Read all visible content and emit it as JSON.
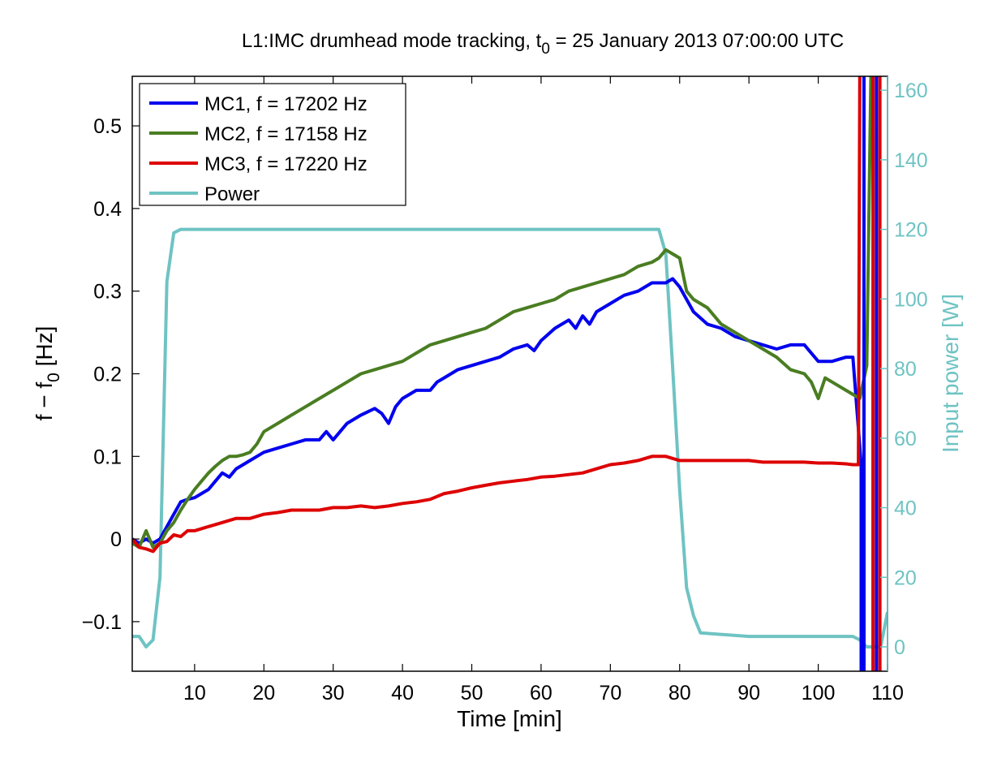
{
  "chart_data": {
    "type": "line",
    "title": {
      "main": "L1:IMC drumhead mode tracking, t",
      "sub": "0",
      "rest": " = 25 January 2013 07:00:00 UTC"
    },
    "xlabel": "Time [min]",
    "ylabel": {
      "pre": "f − f",
      "sub": "0",
      "post": " [Hz]"
    },
    "ylabel_right": "Input power [W]",
    "xlim": [
      1,
      110
    ],
    "ylim": [
      -0.16,
      0.56
    ],
    "ylim_right": [
      -7,
      164
    ],
    "xticks": [
      10,
      20,
      30,
      40,
      50,
      60,
      70,
      80,
      90,
      100,
      110
    ],
    "yticks": [
      -0.1,
      0,
      0.1,
      0.2,
      0.3,
      0.4,
      0.5
    ],
    "yticklabels": [
      "−0.1",
      "0",
      "0.1",
      "0.2",
      "0.3",
      "0.4",
      "0.5"
    ],
    "yticks_right": [
      0,
      20,
      40,
      60,
      80,
      100,
      120,
      140,
      160
    ],
    "grid": false,
    "legend_position": "top-left",
    "colors": {
      "MC1": "#0000ee",
      "MC2": "#4a7d22",
      "MC3": "#dd0000",
      "Power": "#6fc3c3",
      "right_axis": "#6fc3c3"
    },
    "series": [
      {
        "name": "MC1, f = 17202 Hz",
        "axis": "left",
        "color": "#0000ee",
        "x": [
          1,
          2,
          3,
          4,
          5,
          6,
          7,
          8,
          9,
          10,
          11,
          12,
          13,
          14,
          15,
          16,
          17,
          18,
          19,
          20,
          22,
          24,
          26,
          28,
          29,
          30,
          31,
          32,
          34,
          36,
          37,
          38,
          39,
          40,
          42,
          44,
          45,
          46,
          48,
          50,
          52,
          54,
          56,
          58,
          59,
          60,
          62,
          64,
          65,
          66,
          67,
          68,
          70,
          72,
          74,
          76,
          78,
          79,
          80,
          82,
          84,
          86,
          88,
          90,
          92,
          94,
          96,
          98,
          100,
          102,
          104,
          105,
          106.2,
          106.2
        ],
        "y": [
          0.0,
          -0.005,
          0.0,
          -0.005,
          0.0,
          0.015,
          0.03,
          0.045,
          0.048,
          0.05,
          0.055,
          0.06,
          0.07,
          0.08,
          0.075,
          0.085,
          0.09,
          0.095,
          0.1,
          0.105,
          0.11,
          0.115,
          0.12,
          0.12,
          0.13,
          0.12,
          0.13,
          0.14,
          0.15,
          0.158,
          0.152,
          0.14,
          0.16,
          0.17,
          0.18,
          0.18,
          0.19,
          0.195,
          0.205,
          0.21,
          0.215,
          0.22,
          0.23,
          0.235,
          0.228,
          0.24,
          0.255,
          0.265,
          0.255,
          0.27,
          0.26,
          0.275,
          0.285,
          0.295,
          0.3,
          0.31,
          0.31,
          0.315,
          0.305,
          0.275,
          0.26,
          0.255,
          0.245,
          0.24,
          0.235,
          0.23,
          0.235,
          0.235,
          0.215,
          0.215,
          0.22,
          0.22,
          0.09,
          -0.16
        ]
      },
      {
        "name": "MC2, f = 17158 Hz",
        "axis": "left",
        "color": "#4a7d22",
        "x": [
          1,
          2,
          3,
          4,
          5,
          6,
          7,
          8,
          9,
          10,
          11,
          12,
          13,
          14,
          15,
          16,
          17,
          18,
          19,
          20,
          22,
          24,
          26,
          28,
          30,
          32,
          34,
          36,
          38,
          40,
          42,
          44,
          46,
          48,
          50,
          52,
          54,
          56,
          58,
          60,
          62,
          64,
          66,
          68,
          70,
          72,
          74,
          76,
          77,
          78,
          79,
          80,
          81,
          82,
          84,
          86,
          88,
          90,
          92,
          94,
          96,
          98,
          99,
          100,
          101,
          102,
          104,
          106,
          107,
          107.6
        ],
        "y": [
          -0.005,
          -0.01,
          0.01,
          -0.01,
          -0.005,
          0.01,
          0.02,
          0.035,
          0.048,
          0.06,
          0.07,
          0.08,
          0.088,
          0.095,
          0.1,
          0.1,
          0.102,
          0.105,
          0.115,
          0.13,
          0.14,
          0.15,
          0.16,
          0.17,
          0.18,
          0.19,
          0.2,
          0.205,
          0.21,
          0.215,
          0.225,
          0.235,
          0.24,
          0.245,
          0.25,
          0.255,
          0.265,
          0.275,
          0.28,
          0.285,
          0.29,
          0.3,
          0.305,
          0.31,
          0.315,
          0.32,
          0.33,
          0.335,
          0.34,
          0.35,
          0.345,
          0.34,
          0.3,
          0.29,
          0.28,
          0.26,
          0.25,
          0.24,
          0.23,
          0.22,
          0.205,
          0.2,
          0.19,
          0.17,
          0.195,
          0.19,
          0.18,
          0.17,
          0.21,
          0.56
        ]
      },
      {
        "name": "MC3, f = 17220 Hz",
        "axis": "left",
        "color": "#dd0000",
        "x": [
          1,
          2,
          3,
          4,
          5,
          6,
          7,
          8,
          9,
          10,
          12,
          14,
          16,
          18,
          20,
          22,
          24,
          26,
          28,
          30,
          32,
          34,
          36,
          38,
          40,
          42,
          44,
          46,
          48,
          50,
          52,
          54,
          56,
          58,
          60,
          62,
          64,
          66,
          68,
          70,
          72,
          74,
          76,
          78,
          80,
          82,
          84,
          86,
          88,
          90,
          92,
          94,
          96,
          98,
          100,
          102,
          104,
          105,
          105.8,
          106
        ],
        "y": [
          0.0,
          -0.01,
          -0.012,
          -0.015,
          -0.005,
          -0.003,
          0.005,
          0.003,
          0.01,
          0.01,
          0.015,
          0.02,
          0.025,
          0.025,
          0.03,
          0.032,
          0.035,
          0.035,
          0.035,
          0.038,
          0.038,
          0.04,
          0.038,
          0.04,
          0.043,
          0.045,
          0.048,
          0.055,
          0.058,
          0.062,
          0.065,
          0.068,
          0.07,
          0.072,
          0.075,
          0.076,
          0.078,
          0.08,
          0.085,
          0.09,
          0.092,
          0.095,
          0.1,
          0.1,
          0.095,
          0.095,
          0.095,
          0.095,
          0.095,
          0.095,
          0.093,
          0.093,
          0.093,
          0.093,
          0.092,
          0.092,
          0.091,
          0.09,
          0.09,
          0.56
        ]
      },
      {
        "name": "Power",
        "axis": "right",
        "color": "#6fc3c3",
        "x": [
          1,
          2,
          3,
          4,
          5,
          6,
          7,
          8,
          10,
          20,
          30,
          40,
          50,
          60,
          70,
          76,
          77,
          78,
          79,
          80,
          81,
          82,
          83,
          90,
          100,
          104,
          105,
          106,
          107,
          108,
          109,
          110
        ],
        "y": [
          3,
          3,
          0,
          2,
          20,
          105,
          119,
          120,
          120,
          120,
          120,
          120,
          120,
          120,
          120,
          120,
          120,
          113,
          80,
          45,
          17,
          9,
          4,
          3,
          3,
          3,
          3,
          2,
          0,
          0,
          0,
          10
        ]
      }
    ],
    "vertical_spikes": [
      {
        "x": 106.6,
        "color": "#0000ee"
      },
      {
        "x": 107.9,
        "color": "#dd0000"
      },
      {
        "x": 108.4,
        "color": "#0000ee"
      },
      {
        "x": 108.9,
        "color": "#dd0000"
      }
    ],
    "legend": [
      {
        "label": "MC1, f = 17202 Hz",
        "color": "#0000ee"
      },
      {
        "label": "MC2, f = 17158 Hz",
        "color": "#4a7d22"
      },
      {
        "label": "MC3, f = 17220 Hz",
        "color": "#dd0000"
      },
      {
        "label": "Power",
        "color": "#6fc3c3"
      }
    ]
  }
}
